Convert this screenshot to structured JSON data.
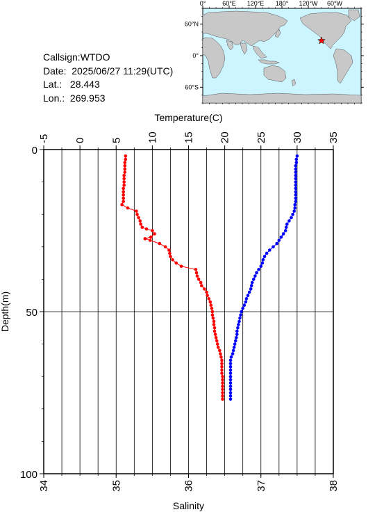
{
  "station": {
    "callsign_label": "Callsign:",
    "callsign": "WTDO",
    "date_label": "Date:",
    "date": "2025/06/27 11:29(UTC)",
    "lat_label": "Lat.:",
    "lat": "28.443",
    "lon_label": "Lon.:",
    "lon": "269.953"
  },
  "map": {
    "lon_ticks": [
      "0°",
      "60°E",
      "120°E",
      "180°",
      "120°W",
      "60°W"
    ],
    "lat_ticks": [
      "60°N",
      "0°",
      "60°S"
    ],
    "ocean_color": "#ccf5ff",
    "land_color": "#c8c8c8",
    "marker_color": "#ff0000",
    "marker_icon": "star-icon"
  },
  "chart_data": {
    "type": "line",
    "top_axis": {
      "label": "Temperature(C)",
      "range": [
        -5,
        35
      ],
      "ticks": [
        "-5",
        "0",
        "5",
        "10",
        "15",
        "20",
        "25",
        "30",
        "35"
      ]
    },
    "bottom_axis": {
      "label": "Salinity",
      "range": [
        34,
        38
      ],
      "ticks": [
        "34",
        "35",
        "36",
        "37",
        "38"
      ]
    },
    "y_axis": {
      "label": "Depth(m)",
      "range": [
        0,
        100
      ],
      "inverted": true,
      "ticks": [
        "0",
        "50",
        "100"
      ]
    },
    "grid": true,
    "series": [
      {
        "color": "#ff0000",
        "axis": "top",
        "points": [
          [
            6.3,
            2
          ],
          [
            6.3,
            3
          ],
          [
            6.2,
            4
          ],
          [
            6.2,
            5
          ],
          [
            6.2,
            6
          ],
          [
            6.2,
            7
          ],
          [
            6.1,
            8
          ],
          [
            6.1,
            9
          ],
          [
            6.1,
            10
          ],
          [
            6.1,
            11
          ],
          [
            6.0,
            12
          ],
          [
            6.0,
            13
          ],
          [
            6.0,
            14
          ],
          [
            6.0,
            15
          ],
          [
            6.0,
            16
          ],
          [
            5.8,
            17
          ],
          [
            6.6,
            18
          ],
          [
            7.8,
            19
          ],
          [
            7.9,
            20
          ],
          [
            8.1,
            21
          ],
          [
            8.3,
            22
          ],
          [
            8.4,
            23
          ],
          [
            8.6,
            24
          ],
          [
            9.2,
            24.5
          ],
          [
            10.0,
            25
          ],
          [
            10.3,
            26
          ],
          [
            9.8,
            27
          ],
          [
            9.0,
            27.5
          ],
          [
            9.7,
            28
          ],
          [
            11.0,
            29
          ],
          [
            11.8,
            30
          ],
          [
            12.3,
            31
          ],
          [
            12.4,
            32
          ],
          [
            12.5,
            33
          ],
          [
            12.8,
            34
          ],
          [
            13.3,
            35
          ],
          [
            14.0,
            36
          ],
          [
            16.0,
            37
          ],
          [
            16.1,
            38
          ],
          [
            16.2,
            39
          ],
          [
            16.4,
            40
          ],
          [
            16.7,
            41
          ],
          [
            16.8,
            42
          ],
          [
            17.2,
            43
          ],
          [
            17.5,
            44
          ],
          [
            17.6,
            45
          ],
          [
            17.8,
            46
          ],
          [
            18.0,
            47
          ],
          [
            18.1,
            48
          ],
          [
            18.2,
            49
          ],
          [
            18.3,
            50
          ],
          [
            18.3,
            51
          ],
          [
            18.4,
            52
          ],
          [
            18.5,
            53
          ],
          [
            18.5,
            54
          ],
          [
            18.6,
            55
          ],
          [
            18.6,
            56
          ],
          [
            18.7,
            57
          ],
          [
            18.8,
            58
          ],
          [
            18.9,
            59
          ],
          [
            19.0,
            60
          ],
          [
            19.1,
            61
          ],
          [
            19.3,
            62
          ],
          [
            19.4,
            63
          ],
          [
            19.5,
            64
          ],
          [
            19.6,
            65
          ],
          [
            19.6,
            66
          ],
          [
            19.6,
            67
          ],
          [
            19.6,
            68
          ],
          [
            19.6,
            69
          ],
          [
            19.7,
            70
          ],
          [
            19.7,
            71
          ],
          [
            19.7,
            72
          ],
          [
            19.7,
            73
          ],
          [
            19.7,
            74
          ],
          [
            19.7,
            75
          ],
          [
            19.7,
            76
          ],
          [
            19.7,
            77
          ]
        ]
      },
      {
        "color": "#0000ff",
        "axis": "bottom",
        "points": [
          [
            37.5,
            2
          ],
          [
            37.49,
            3
          ],
          [
            37.49,
            4
          ],
          [
            37.48,
            5
          ],
          [
            37.48,
            6
          ],
          [
            37.48,
            7
          ],
          [
            37.48,
            8
          ],
          [
            37.48,
            9
          ],
          [
            37.48,
            10
          ],
          [
            37.48,
            11
          ],
          [
            37.48,
            12
          ],
          [
            37.48,
            13
          ],
          [
            37.48,
            14
          ],
          [
            37.48,
            15
          ],
          [
            37.48,
            16
          ],
          [
            37.47,
            17
          ],
          [
            37.47,
            18
          ],
          [
            37.46,
            19
          ],
          [
            37.44,
            20
          ],
          [
            37.42,
            21
          ],
          [
            37.39,
            22
          ],
          [
            37.36,
            23
          ],
          [
            37.35,
            24
          ],
          [
            37.34,
            25
          ],
          [
            37.31,
            26
          ],
          [
            37.28,
            27
          ],
          [
            37.25,
            28
          ],
          [
            37.22,
            29
          ],
          [
            37.17,
            30
          ],
          [
            37.12,
            31
          ],
          [
            37.08,
            32
          ],
          [
            37.05,
            33
          ],
          [
            37.03,
            34
          ],
          [
            37.02,
            35
          ],
          [
            37.0,
            36
          ],
          [
            36.97,
            37
          ],
          [
            36.94,
            38
          ],
          [
            36.92,
            39
          ],
          [
            36.9,
            40
          ],
          [
            36.88,
            41
          ],
          [
            36.87,
            42
          ],
          [
            36.86,
            43
          ],
          [
            36.84,
            44
          ],
          [
            36.82,
            45
          ],
          [
            36.8,
            46
          ],
          [
            36.79,
            47
          ],
          [
            36.77,
            48
          ],
          [
            36.75,
            49
          ],
          [
            36.73,
            50
          ],
          [
            36.72,
            51
          ],
          [
            36.71,
            52
          ],
          [
            36.7,
            53
          ],
          [
            36.69,
            54
          ],
          [
            36.68,
            55
          ],
          [
            36.67,
            56
          ],
          [
            36.67,
            57
          ],
          [
            36.66,
            58
          ],
          [
            36.65,
            59
          ],
          [
            36.64,
            60
          ],
          [
            36.63,
            61
          ],
          [
            36.62,
            62
          ],
          [
            36.61,
            63
          ],
          [
            36.59,
            64
          ],
          [
            36.58,
            65
          ],
          [
            36.58,
            66
          ],
          [
            36.58,
            67
          ],
          [
            36.58,
            68
          ],
          [
            36.58,
            69
          ],
          [
            36.58,
            70
          ],
          [
            36.58,
            71
          ],
          [
            36.58,
            72
          ],
          [
            36.58,
            73
          ],
          [
            36.58,
            74
          ],
          [
            36.58,
            75
          ],
          [
            36.58,
            76
          ],
          [
            36.58,
            77
          ]
        ]
      }
    ]
  }
}
